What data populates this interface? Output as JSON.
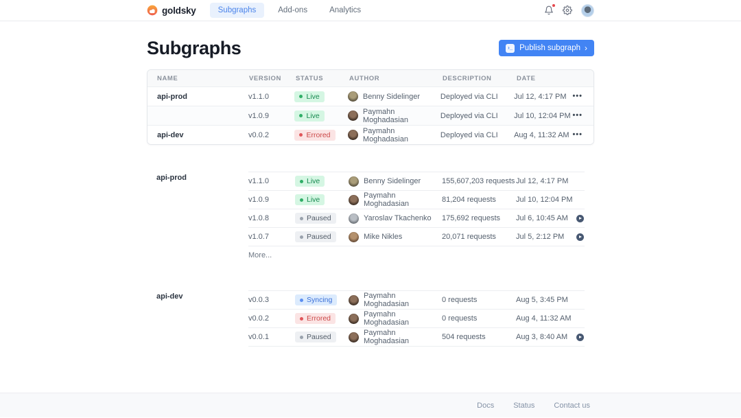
{
  "nav": {
    "brand": "goldsky",
    "tabs": [
      {
        "label": "Subgraphs",
        "active": true
      },
      {
        "label": "Add-ons",
        "active": false
      },
      {
        "label": "Analytics",
        "active": false
      }
    ]
  },
  "header": {
    "title": "Subgraphs",
    "publish_label": "Publish subgraph",
    "publish_icon_glyph": "›_",
    "publish_chevron": "›"
  },
  "table": {
    "columns": [
      "Name",
      "Version",
      "Status",
      "Author",
      "Description",
      "Date"
    ],
    "row_menu_glyph": "•••",
    "rows": [
      {
        "name": "api-prod",
        "version": "v1.1.0",
        "status": "Live",
        "author": "Benny Sidelinger",
        "description": "Deployed via CLI",
        "date": "Jul 12, 4:17 PM"
      },
      {
        "name": "",
        "version": "v1.0.9",
        "status": "Live",
        "author": "Paymahn Moghadasian",
        "description": "Deployed via CLI",
        "date": "Jul 10, 12:04 PM"
      },
      {
        "name": "api-dev",
        "version": "v0.0.2",
        "status": "Errored",
        "author": "Paymahn Moghadasian",
        "description": "Deployed via CLI",
        "date": "Aug 4, 11:32 AM"
      }
    ]
  },
  "groups": [
    {
      "name": "api-prod",
      "more_label": "More...",
      "rows": [
        {
          "version": "v1.1.0",
          "status": "Live",
          "author": "Benny Sidelinger",
          "requests": "155,607,203 requests",
          "date": "Jul 12, 4:17 PM",
          "play": false
        },
        {
          "version": "v1.0.9",
          "status": "Live",
          "author": "Paymahn Moghadasian",
          "requests": "81,204 requests",
          "date": "Jul 10, 12:04 PM",
          "play": false
        },
        {
          "version": "v1.0.8",
          "status": "Paused",
          "author": "Yaroslav Tkachenko",
          "requests": "175,692 requests",
          "date": "Jul 6, 10:45 AM",
          "play": true
        },
        {
          "version": "v1.0.7",
          "status": "Paused",
          "author": "Mike Nikles",
          "requests": "20,071 requests",
          "date": "Jul 5, 2:12 PM",
          "play": true
        }
      ]
    },
    {
      "name": "api-dev",
      "more_label": "",
      "rows": [
        {
          "version": "v0.0.3",
          "status": "Syncing",
          "author": "Paymahn Moghadasian",
          "requests": "0 requests",
          "date": "Aug 5, 3:45 PM",
          "play": false
        },
        {
          "version": "v0.0.2",
          "status": "Errored",
          "author": "Paymahn Moghadasian",
          "requests": "0 requests",
          "date": "Aug 4, 11:32 AM",
          "play": false
        },
        {
          "version": "v0.0.1",
          "status": "Paused",
          "author": "Paymahn Moghadasian",
          "requests": "504 requests",
          "date": "Aug 3, 8:40 AM",
          "play": true
        }
      ]
    }
  ],
  "footer": {
    "links": [
      "Docs",
      "Status",
      "Contact us"
    ]
  },
  "colors": {
    "accent": "#4284f4",
    "active_tab_bg": "#e9f1fd",
    "active_tab_text": "#4b84ea",
    "brand_gradient_top": "#f9a63b",
    "brand_gradient_bottom": "#ee5d4d",
    "notification_dot": "#e5484d",
    "play_button": "#475872",
    "status": {
      "Live": {
        "bg": "#d5f6e3",
        "text": "#16894f",
        "dot": "#2fae66"
      },
      "Errored": {
        "bg": "#fbe4e4",
        "text": "#cb4848",
        "dot": "#e0565a"
      },
      "Paused": {
        "bg": "#eef0f3",
        "text": "#525c68",
        "dot": "#9aa2ad"
      },
      "Syncing": {
        "bg": "#dcebfd",
        "text": "#3a6fd8",
        "dot": "#5b8ef2"
      }
    },
    "avatars": {
      "Benny Sidelinger": [
        "#aa9d79",
        "#4f4836"
      ],
      "Paymahn Moghadasian": [
        "#8c6f5a",
        "#33261d"
      ],
      "Yaroslav Tkachenko": [
        "#b9bec4",
        "#63686e"
      ],
      "Mike Nikles": [
        "#b4916d",
        "#5e4430"
      ]
    }
  }
}
